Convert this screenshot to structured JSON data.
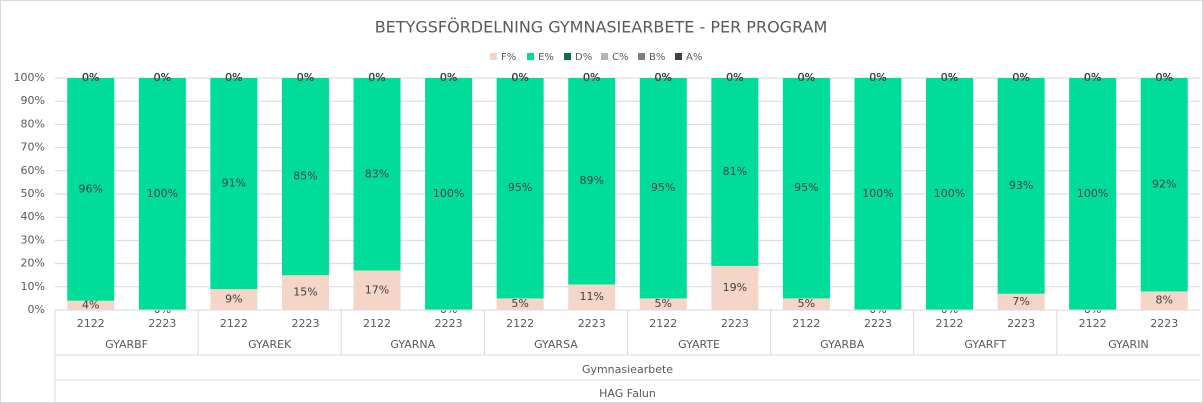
{
  "chart_data": {
    "type": "stacked_bar_100",
    "title": "BETYGSFÖRDELNING GYMNASIEARBETE - PER PROGRAM",
    "categories": [
      "2122",
      "2223",
      "2122",
      "2223",
      "2122",
      "2223",
      "2122",
      "2223",
      "2122",
      "2223",
      "2122",
      "2223",
      "2122",
      "2223",
      "2122",
      "2223"
    ],
    "groups": [
      "GYARBF",
      "GYAREK",
      "GYARNA",
      "GYARSA",
      "GYARTE",
      "GYARBA",
      "GYARFT",
      "GYARIN"
    ],
    "group_level2": "Gymnasiearbete",
    "group_level3": "HAG Falun",
    "series": [
      {
        "name": "F%",
        "color": "#f4d5c8",
        "values": [
          4,
          0,
          9,
          15,
          17,
          0,
          5,
          11,
          5,
          19,
          5,
          0,
          0,
          7,
          0,
          8
        ],
        "value_labels": [
          "4%",
          "0%",
          "9%",
          "15%",
          "17%",
          "0%",
          "5%",
          "11%",
          "5%",
          "19%",
          "5%",
          "0%",
          "0%",
          "7%",
          "0%",
          "8%"
        ]
      },
      {
        "name": "E%",
        "color": "#00dd9a",
        "values": [
          96,
          100,
          91,
          85,
          83,
          100,
          95,
          89,
          95,
          81,
          95,
          100,
          100,
          93,
          100,
          92
        ],
        "value_labels": [
          "96%",
          "100%",
          "91%",
          "85%",
          "83%",
          "100%",
          "95%",
          "89%",
          "95%",
          "81%",
          "95%",
          "100%",
          "100%",
          "93%",
          "100%",
          "92%"
        ]
      },
      {
        "name": "D%",
        "color": "#0f6e4a",
        "values": [
          0,
          0,
          0,
          0,
          0,
          0,
          0,
          0,
          0,
          0,
          0,
          0,
          0,
          0,
          0,
          0
        ],
        "value_labels": [
          "0%",
          "0%",
          "0%",
          "0%",
          "0%",
          "0%",
          "0%",
          "0%",
          "0%",
          "0%",
          "0%",
          "0%",
          "0%",
          "0%",
          "0%",
          "0%"
        ]
      },
      {
        "name": "C%",
        "color": "#b4b4b4",
        "values": [
          0,
          0,
          0,
          0,
          0,
          0,
          0,
          0,
          0,
          0,
          0,
          0,
          0,
          0,
          0,
          0
        ],
        "value_labels": [
          "0%",
          "0%",
          "0%",
          "0%",
          "0%",
          "0%",
          "0%",
          "0%",
          "0%",
          "0%",
          "0%",
          "0%",
          "0%",
          "0%",
          "0%",
          "0%"
        ]
      },
      {
        "name": "B%",
        "color": "#808080",
        "values": [
          0,
          0,
          0,
          0,
          0,
          0,
          0,
          0,
          0,
          0,
          0,
          0,
          0,
          0,
          0,
          0
        ],
        "value_labels": [
          "0%",
          "0%",
          "0%",
          "0%",
          "0%",
          "0%",
          "0%",
          "0%",
          "0%",
          "0%",
          "0%",
          "0%",
          "0%",
          "0%",
          "0%",
          "0%"
        ]
      },
      {
        "name": "A%",
        "color": "#404040",
        "values": [
          0,
          0,
          0,
          0,
          0,
          0,
          0,
          0,
          0,
          0,
          0,
          0,
          0,
          0,
          0,
          0
        ],
        "value_labels": [
          "0%",
          "0%",
          "0%",
          "0%",
          "0%",
          "0%",
          "0%",
          "0%",
          "0%",
          "0%",
          "0%",
          "0%",
          "0%",
          "0%",
          "0%",
          "0%"
        ]
      }
    ],
    "ylim": [
      0,
      100
    ],
    "yticks": [
      {
        "value": 0,
        "label": "0%"
      },
      {
        "value": 10,
        "label": "10%"
      },
      {
        "value": 20,
        "label": "20%"
      },
      {
        "value": 30,
        "label": "30%"
      },
      {
        "value": 40,
        "label": "40%"
      },
      {
        "value": 50,
        "label": "50%"
      },
      {
        "value": 60,
        "label": "60%"
      },
      {
        "value": 70,
        "label": "70%"
      },
      {
        "value": 80,
        "label": "80%"
      },
      {
        "value": 90,
        "label": "90%"
      },
      {
        "value": 100,
        "label": "100%"
      }
    ],
    "grid": true,
    "legend": "top"
  }
}
